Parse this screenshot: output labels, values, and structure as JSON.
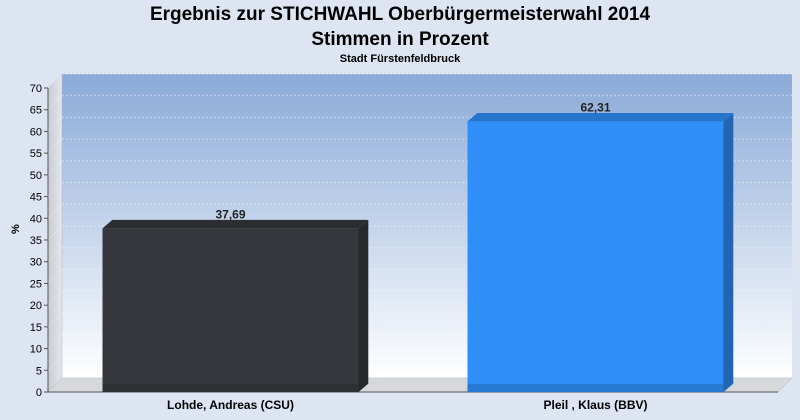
{
  "title_line1": "Ergebnis zur STICHWAHL Oberbürgermeisterwahl 2014",
  "title_line2": "Stimmen in Prozent",
  "subtitle": "Stadt Fürstenfeldbruck",
  "chart_data": {
    "type": "bar",
    "title": "Ergebnis zur STICHWAHL Oberbürgermeisterwahl 2014 Stimmen in Prozent",
    "subtitle": "Stadt Fürstenfeldbruck",
    "ylabel": "%",
    "xlabel": "",
    "ylim": [
      0,
      70
    ],
    "yticks": [
      0,
      5,
      10,
      15,
      20,
      25,
      30,
      35,
      40,
      45,
      50,
      55,
      60,
      65,
      70
    ],
    "categories": [
      "Lohde, Andreas (CSU)",
      "Pleil , Klaus (BBV)"
    ],
    "values": [
      37.69,
      62.31
    ],
    "value_labels": [
      "37,69",
      "62,31"
    ],
    "colors": [
      "#36373c",
      "#2f8ef8"
    ],
    "grid": true,
    "style": "3d"
  }
}
